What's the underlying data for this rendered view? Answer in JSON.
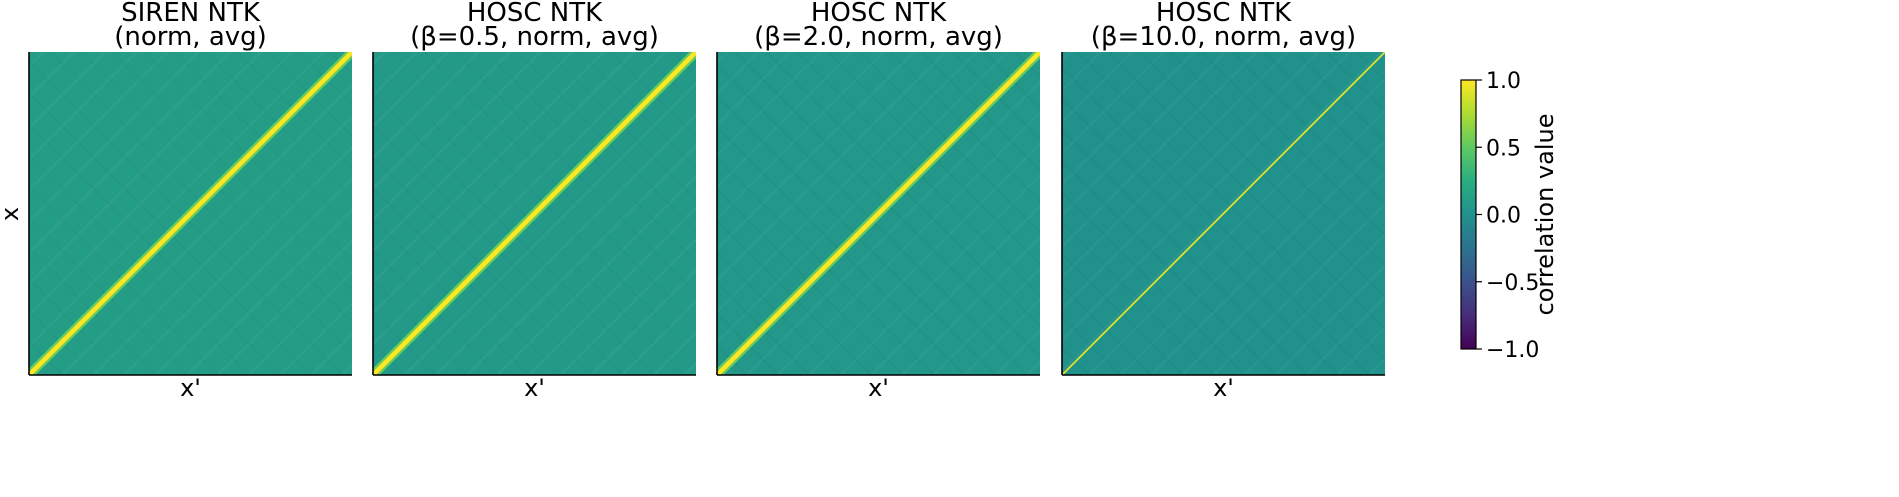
{
  "chart_data": {
    "type": "heatmap",
    "colormap": "viridis",
    "colorbar": {
      "label": "correlation value",
      "range": [
        -1.0,
        1.0
      ],
      "ticks": [
        1.0,
        0.5,
        0.0,
        -0.5,
        -1.0
      ],
      "tick_labels": [
        "1.0",
        "0.5",
        "0.0",
        "−0.5",
        "−1.0"
      ]
    },
    "panels": [
      {
        "title": "SIREN NTK",
        "subtitle": "(norm, avg)",
        "xlabel": "x'",
        "ylabel": "x",
        "diagonal_value": 1.0,
        "off_diagonal_value": 0.1,
        "diagonal_width": "wide"
      },
      {
        "title": "HOSC NTK",
        "subtitle": "(β=0.5, norm, avg)",
        "xlabel": "x'",
        "ylabel": "",
        "diagonal_value": 1.0,
        "off_diagonal_value": 0.08,
        "diagonal_width": "wide"
      },
      {
        "title": "HOSC NTK",
        "subtitle": "(β=2.0, norm, avg)",
        "xlabel": "x'",
        "ylabel": "",
        "diagonal_value": 1.0,
        "off_diagonal_value": 0.05,
        "diagonal_width": "wide"
      },
      {
        "title": "HOSC NTK",
        "subtitle": "(β=10.0, norm, avg)",
        "xlabel": "x'",
        "ylabel": "",
        "diagonal_value": 0.9,
        "off_diagonal_value": 0.0,
        "diagonal_width": "thin"
      }
    ]
  },
  "colors": {
    "diagonal": "#fde725",
    "axis": "#000000"
  }
}
